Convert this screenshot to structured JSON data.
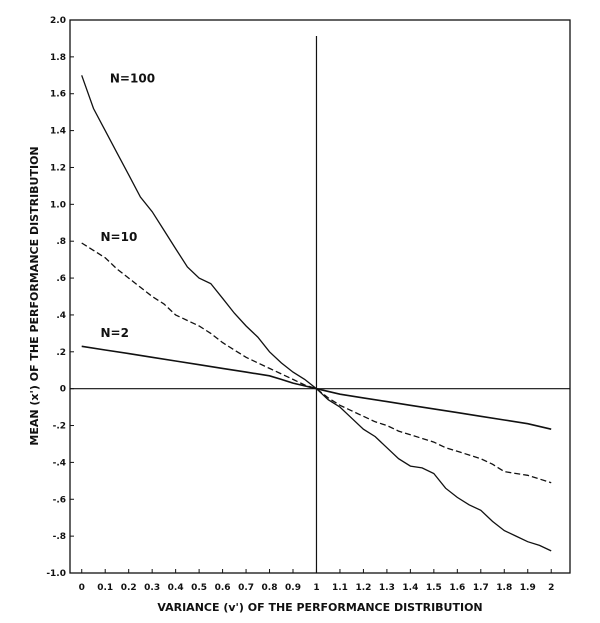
{
  "chart_data": {
    "type": "line",
    "title": "",
    "xlabel": "VARIANCE (v') OF THE PERFORMANCE DISTRIBUTION",
    "ylabel": "MEAN (x') OF THE PERFORMANCE DISTRIBUTION",
    "xlim": [
      -0.05,
      2.08
    ],
    "ylim": [
      -1.0,
      2.0
    ],
    "x_ticks": [
      0,
      0.1,
      0.2,
      0.3,
      0.4,
      0.5,
      0.6,
      0.7,
      0.8,
      0.9,
      1,
      1.1,
      1.2,
      1.3,
      1.4,
      1.5,
      1.6,
      1.7,
      1.8,
      1.9,
      2
    ],
    "x_tick_labels": [
      "0",
      "0.1",
      "0.2",
      "0.3",
      "0.4",
      "0.5",
      "0.6",
      "0.7",
      "0.8",
      "0.9",
      "1",
      "1.1",
      "1.2",
      "1.3",
      "1.4",
      "1.5",
      "1.6",
      "1.7",
      "1.8",
      "1.9",
      "2"
    ],
    "y_ticks": [
      2.0,
      1.8,
      1.6,
      1.4,
      1.2,
      1.0,
      0.8,
      0.6,
      0.4,
      0.2,
      0,
      -0.2,
      -0.4,
      -0.6,
      -0.8,
      -1.0
    ],
    "y_tick_labels": [
      "2.0",
      "1.8",
      "1.6",
      "1.4",
      "1.2",
      "1.0",
      ".8",
      ".6",
      ".4",
      ".2",
      "0",
      "-.2",
      "-.4",
      "-.6",
      "-.8",
      "-1.0"
    ],
    "reference_lines": {
      "x": 1,
      "y": 0
    },
    "grid": false,
    "legend": "none",
    "series": [
      {
        "name": "N=100",
        "style": "solid",
        "x": [
          0,
          0.05,
          0.1,
          0.15,
          0.2,
          0.25,
          0.3,
          0.35,
          0.4,
          0.45,
          0.5,
          0.55,
          0.6,
          0.65,
          0.7,
          0.75,
          0.8,
          0.85,
          0.9,
          0.95,
          1.0,
          1.05,
          1.1,
          1.15,
          1.2,
          1.25,
          1.3,
          1.35,
          1.4,
          1.45,
          1.5,
          1.55,
          1.6,
          1.65,
          1.7,
          1.75,
          1.8,
          1.85,
          1.9,
          1.95,
          2.0
        ],
        "y": [
          1.7,
          1.52,
          1.4,
          1.28,
          1.16,
          1.04,
          0.96,
          0.86,
          0.76,
          0.66,
          0.6,
          0.57,
          0.49,
          0.41,
          0.34,
          0.28,
          0.2,
          0.14,
          0.09,
          0.05,
          0.0,
          -0.06,
          -0.1,
          -0.16,
          -0.22,
          -0.26,
          -0.32,
          -0.38,
          -0.42,
          -0.43,
          -0.46,
          -0.54,
          -0.59,
          -0.63,
          -0.66,
          -0.72,
          -0.77,
          -0.8,
          -0.83,
          -0.85,
          -0.88
        ]
      },
      {
        "name": "N=10",
        "style": "dashed",
        "x": [
          0,
          0.05,
          0.1,
          0.15,
          0.2,
          0.25,
          0.3,
          0.35,
          0.4,
          0.45,
          0.5,
          0.55,
          0.6,
          0.65,
          0.7,
          0.75,
          0.8,
          0.85,
          0.9,
          0.95,
          1.0,
          1.05,
          1.1,
          1.15,
          1.2,
          1.25,
          1.3,
          1.35,
          1.4,
          1.45,
          1.5,
          1.55,
          1.6,
          1.65,
          1.7,
          1.75,
          1.8,
          1.85,
          1.9,
          1.95,
          2.0
        ],
        "y": [
          0.79,
          0.75,
          0.71,
          0.65,
          0.6,
          0.55,
          0.5,
          0.46,
          0.4,
          0.37,
          0.34,
          0.3,
          0.25,
          0.21,
          0.17,
          0.14,
          0.11,
          0.08,
          0.05,
          0.02,
          0.0,
          -0.05,
          -0.09,
          -0.12,
          -0.15,
          -0.18,
          -0.2,
          -0.23,
          -0.25,
          -0.27,
          -0.29,
          -0.32,
          -0.34,
          -0.36,
          -0.38,
          -0.41,
          -0.45,
          -0.46,
          -0.47,
          -0.49,
          -0.51
        ]
      },
      {
        "name": "N=2",
        "style": "solid",
        "x": [
          0,
          0.1,
          0.2,
          0.3,
          0.4,
          0.5,
          0.6,
          0.7,
          0.8,
          0.85,
          0.9,
          0.95,
          1.0,
          1.1,
          1.2,
          1.3,
          1.4,
          1.5,
          1.6,
          1.7,
          1.8,
          1.9,
          2.0
        ],
        "y": [
          0.23,
          0.21,
          0.19,
          0.17,
          0.15,
          0.13,
          0.11,
          0.09,
          0.07,
          0.05,
          0.03,
          0.015,
          0.0,
          -0.03,
          -0.05,
          -0.07,
          -0.09,
          -0.11,
          -0.13,
          -0.15,
          -0.17,
          -0.19,
          -0.22
        ]
      }
    ],
    "series_label_positions": [
      {
        "name": "N=100",
        "x": 0.12,
        "y": 1.66
      },
      {
        "name": "N=10",
        "x": 0.08,
        "y": 0.8
      },
      {
        "name": "N=2",
        "x": 0.08,
        "y": 0.28
      }
    ]
  }
}
